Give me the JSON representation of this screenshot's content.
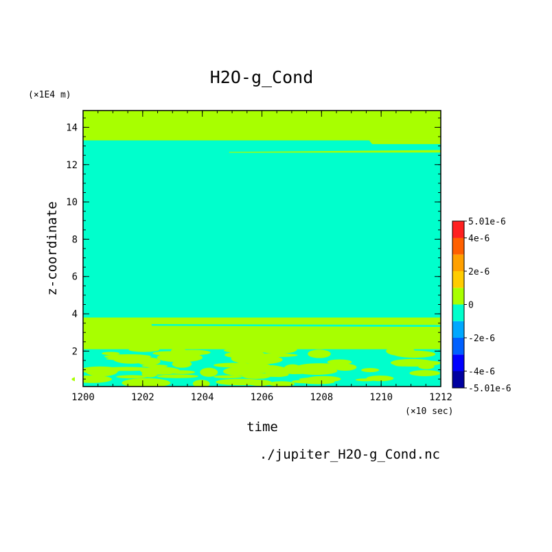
{
  "chart_data": {
    "type": "heatmap",
    "title": "H2O-g_Cond",
    "xlabel": "time",
    "ylabel": "z-coordinate",
    "x_unit": "(×10 sec)",
    "y_unit": "(×1E4 m)",
    "source": "./jupiter_H2O-g_Cond.nc",
    "xlim": [
      1200,
      1212
    ],
    "ylim": [
      0.1,
      14.9
    ],
    "x_ticks": [
      1200,
      1202,
      1204,
      1206,
      1208,
      1210,
      1212
    ],
    "y_ticks": [
      2,
      4,
      6,
      8,
      10,
      12,
      14
    ],
    "colorbar": {
      "levels": [
        -5.01e-06,
        -4e-06,
        -3e-06,
        -2e-06,
        -1e-06,
        0,
        1e-06,
        2e-06,
        3e-06,
        4e-06,
        5.01e-06
      ],
      "colors": [
        "#0000a0",
        "#0000ff",
        "#0060ff",
        "#00a8ff",
        "#00ffcc",
        "#a8ff00",
        "#ffcc00",
        "#ffa000",
        "#ff6000",
        "#ff2020"
      ],
      "labels": [
        {
          "value": 5.01e-06,
          "text": "5.01e-6"
        },
        {
          "value": 4e-06,
          "text": "4e-6"
        },
        {
          "value": 2e-06,
          "text": "2e-6"
        },
        {
          "value": 0,
          "text": "0"
        },
        {
          "value": -2e-06,
          "text": "-2e-6"
        },
        {
          "value": -4e-06,
          "text": "-4e-6"
        },
        {
          "value": -5.01e-06,
          "text": "-5.01e-6"
        }
      ]
    },
    "regions": [
      {
        "y_from": 13.3,
        "y_to": 14.9,
        "level": "0 to 1e-6"
      },
      {
        "y_from": 3.8,
        "y_to": 13.3,
        "level": "-1e-6 to 0"
      },
      {
        "y_from": 2.1,
        "y_to": 3.8,
        "level": "0 to 1e-6"
      },
      {
        "y_from": 0.1,
        "y_to": 2.1,
        "level": "mixed -1e-6 to 1e-6"
      }
    ]
  }
}
